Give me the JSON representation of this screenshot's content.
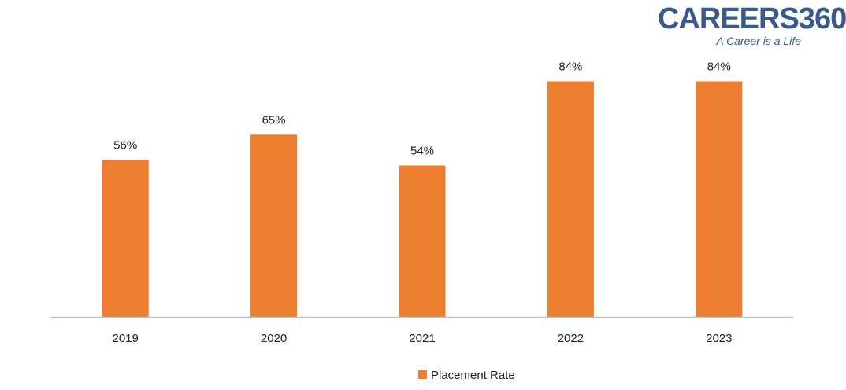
{
  "logo": {
    "name": "CAREERS360",
    "tagline": "A Career is a Life"
  },
  "colors": {
    "bar": "#ED7D31",
    "axis": "#BFBFBF",
    "text": "#222222",
    "logo": "#3A5A8C"
  },
  "chart_data": {
    "type": "bar",
    "categories": [
      "2019",
      "2020",
      "2021",
      "2022",
      "2023"
    ],
    "series": [
      {
        "name": "Placement Rate",
        "values": [
          56,
          65,
          54,
          84,
          84
        ],
        "labels": [
          "56%",
          "65%",
          "54%",
          "84%",
          "84%"
        ]
      }
    ],
    "title": "",
    "xlabel": "",
    "ylabel": "",
    "ylim": [
      0,
      100
    ],
    "grid": false,
    "legend": "bottom-center"
  }
}
